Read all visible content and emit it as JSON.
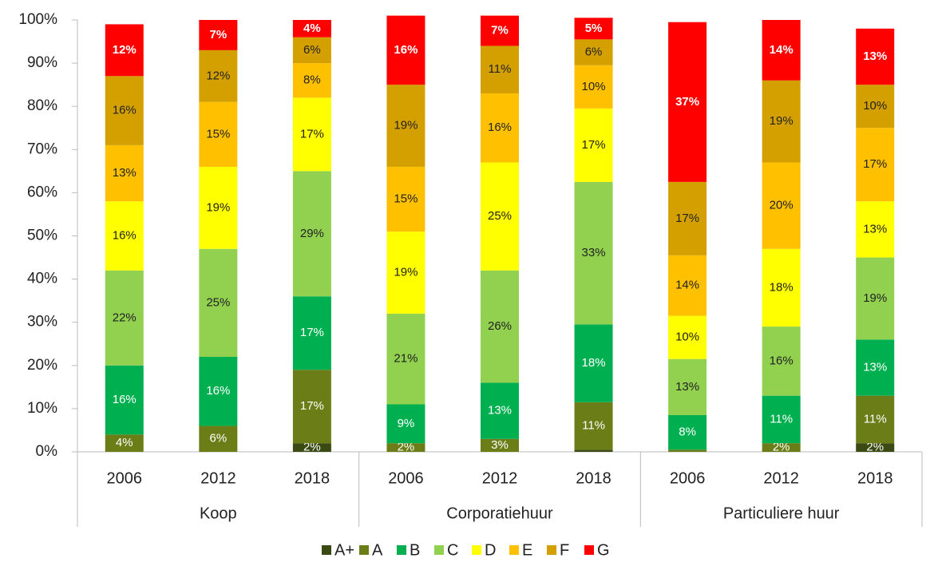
{
  "chart_data": {
    "type": "stacked-bar",
    "groups": [
      {
        "name": "Koop",
        "categories": [
          "2006",
          "2012",
          "2018"
        ]
      },
      {
        "name": "Corporatiehuur",
        "categories": [
          "2006",
          "2012",
          "2018"
        ]
      },
      {
        "name": "Particuliere huur",
        "categories": [
          "2006",
          "2012",
          "2018"
        ]
      }
    ],
    "ylim": [
      0,
      100
    ],
    "yticks": [
      {
        "value": 0,
        "label": "0%"
      },
      {
        "value": 10,
        "label": "10%"
      },
      {
        "value": 20,
        "label": "20%"
      },
      {
        "value": 30,
        "label": "30%"
      },
      {
        "value": 40,
        "label": "40%"
      },
      {
        "value": 50,
        "label": "50%"
      },
      {
        "value": 60,
        "label": "60%"
      },
      {
        "value": 70,
        "label": "70%"
      },
      {
        "value": 80,
        "label": "80%"
      },
      {
        "value": 90,
        "label": "90%"
      },
      {
        "value": 100,
        "label": "100%"
      }
    ],
    "legend": "bottom",
    "series": [
      {
        "name": "A+",
        "color": "#3b4a12",
        "values": [
          0,
          0,
          2,
          0,
          0,
          0.5,
          0,
          0,
          2
        ],
        "value_labels": [
          null,
          null,
          "2%",
          null,
          null,
          null,
          null,
          null,
          "2%"
        ]
      },
      {
        "name": "A",
        "color": "#6b7d17",
        "values": [
          4,
          6,
          17,
          2,
          3,
          11,
          0.5,
          2,
          11
        ],
        "value_labels": [
          "4%",
          "6%",
          "17%",
          "2%",
          "3%",
          "11%",
          null,
          "2%",
          "11%"
        ]
      },
      {
        "name": "B",
        "color": "#00b050",
        "values": [
          16,
          16,
          17,
          9,
          13,
          18,
          8,
          11,
          13
        ],
        "value_labels": [
          "16%",
          "16%",
          "17%",
          "9%",
          "13%",
          "18%",
          "8%",
          "11%",
          "13%"
        ]
      },
      {
        "name": "C",
        "color": "#92d050",
        "values": [
          22,
          25,
          29,
          21,
          26,
          33,
          13,
          16,
          19
        ],
        "value_labels": [
          "22%",
          "25%",
          "29%",
          "21%",
          "26%",
          "33%",
          "13%",
          "16%",
          "19%"
        ]
      },
      {
        "name": "D",
        "color": "#ffff00",
        "values": [
          16,
          19,
          17,
          19,
          25,
          17,
          10,
          18,
          13
        ],
        "value_labels": [
          "16%",
          "19%",
          "17%",
          "19%",
          "25%",
          "17%",
          "10%",
          "18%",
          "13%"
        ]
      },
      {
        "name": "E",
        "color": "#ffc000",
        "values": [
          13,
          15,
          8,
          15,
          16,
          10,
          14,
          20,
          17
        ],
        "value_labels": [
          "13%",
          "15%",
          "8%",
          "15%",
          "16%",
          "10%",
          "14%",
          "20%",
          "17%"
        ]
      },
      {
        "name": "F",
        "color": "#d4a000",
        "values": [
          16,
          12,
          6,
          19,
          11,
          6,
          17,
          19,
          10
        ],
        "value_labels": [
          "16%",
          "12%",
          "6%",
          "19%",
          "11%",
          "6%",
          "17%",
          "19%",
          "10%"
        ]
      },
      {
        "name": "G",
        "color": "#ff0000",
        "values": [
          12,
          7,
          4,
          16,
          7,
          5,
          37,
          14,
          13
        ],
        "value_labels": [
          "12%",
          "7%",
          "4%",
          "16%",
          "7%",
          "5%",
          "37%",
          "14%",
          "13%"
        ]
      }
    ]
  }
}
